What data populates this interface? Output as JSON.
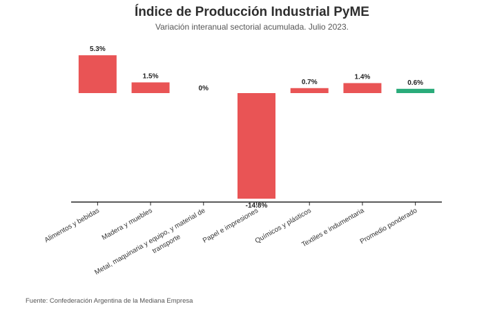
{
  "title": "Índice de Producción Industrial PyME",
  "subtitle": "Variación interanual sectorial acumulada. Julio 2023.",
  "source": "Fuente: Confederación Argentina de la Mediana Empresa",
  "colors": {
    "negative_sector": "#e95455",
    "positive_sector": "#e95455",
    "average": "#2aab7a",
    "axis": "#222222"
  },
  "chart_data": {
    "type": "bar",
    "title": "Índice de Producción Industrial PyME",
    "subtitle": "Variación interanual sectorial acumulada. Julio 2023.",
    "xlabel": "",
    "ylabel": "",
    "categories": [
      "Alimentos y bebidas",
      "Madera y muebles",
      "Metal, maquinaria y equipo, y material de transporte",
      "Papel e impresiones",
      "Químicos y plásticos",
      "Textiles e indumentaria",
      "Promedio ponderado"
    ],
    "category_lines": [
      [
        "Alimentos y bebidas"
      ],
      [
        "Madera y muebles"
      ],
      [
        "Metal, maquinaria y equipo, y material de",
        "transporte"
      ],
      [
        "Papel e impresiones"
      ],
      [
        "Químicos y plásticos"
      ],
      [
        "Textiles e indumentaria"
      ],
      [
        "Promedio ponderado"
      ]
    ],
    "values": [
      5.3,
      1.5,
      0,
      -14.8,
      0.7,
      1.4,
      0.6
    ],
    "value_labels": [
      "5.3%",
      "1.5%",
      "0%",
      "-14.8%",
      "0.7%",
      "1.4%",
      "0.6%"
    ],
    "highlight": [
      "sector",
      "sector",
      "sector",
      "sector",
      "sector",
      "sector",
      "average"
    ],
    "ylim": [
      -15,
      5.5
    ],
    "grid": false,
    "legend": "none"
  }
}
